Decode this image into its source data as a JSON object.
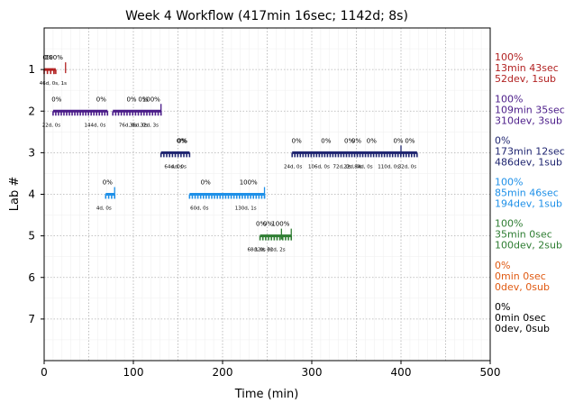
{
  "chart_data": {
    "type": "timeline",
    "title": "Week 4 Workflow (417min 16sec; 1142d; 8s)",
    "xlabel": "Time (min)",
    "ylabel": "Lab #",
    "xlim": [
      0,
      500
    ],
    "ylim": [
      8,
      0
    ],
    "x_ticks": [
      "0",
      "100",
      "200",
      "300",
      "400",
      "500"
    ],
    "y_ticks": [
      "1",
      "2",
      "3",
      "4",
      "5",
      "6",
      "7"
    ],
    "grid": true,
    "labs": [
      {
        "lab": 1,
        "color": "#b22222",
        "summary": [
          "100%",
          "13min 43sec",
          "52dev, 1sub"
        ],
        "segments": [
          [
            0,
            11
          ],
          [
            11,
            13
          ]
        ],
        "spikes": [
          24
        ],
        "upper_labels": [
          {
            "x": 4,
            "text": "0%"
          },
          {
            "x": 11,
            "text": "100%"
          }
        ],
        "lower_labels": [
          {
            "x": 10,
            "text": "46d, 0s, 1s"
          }
        ]
      },
      {
        "lab": 2,
        "color": "#4b1c89",
        "summary": [
          "100%",
          "109min 35sec",
          "310dev, 3sub"
        ],
        "segments": [
          [
            10,
            71
          ],
          [
            77,
            131
          ]
        ],
        "spikes": [
          131
        ],
        "upper_labels": [
          {
            "x": 14,
            "text": "0%"
          },
          {
            "x": 64,
            "text": "0%"
          },
          {
            "x": 98,
            "text": "0%"
          },
          {
            "x": 111,
            "text": "0%"
          },
          {
            "x": 120,
            "text": "100%"
          }
        ],
        "lower_labels": [
          {
            "x": 8,
            "text": "22d, 0s"
          },
          {
            "x": 57,
            "text": "144d, 0s"
          },
          {
            "x": 94,
            "text": "76d, 0s"
          },
          {
            "x": 106,
            "text": "36d, 0s"
          },
          {
            "x": 118,
            "text": "32d, 3s"
          }
        ]
      },
      {
        "lab": 3,
        "color": "#1f2570",
        "summary": [
          "0%",
          "173min 12sec",
          "486dev, 1sub"
        ],
        "segments": [
          [
            131,
            163
          ],
          [
            278,
            418
          ]
        ],
        "spikes": [
          400
        ],
        "upper_labels": [
          {
            "x": 154,
            "text": "0%"
          },
          {
            "x": 155,
            "text": "0%"
          },
          {
            "x": 283,
            "text": "0%"
          },
          {
            "x": 316,
            "text": "0%"
          },
          {
            "x": 342,
            "text": "0%"
          },
          {
            "x": 350,
            "text": "0%"
          },
          {
            "x": 367,
            "text": "0%"
          },
          {
            "x": 397,
            "text": "0%"
          },
          {
            "x": 410,
            "text": "0%"
          }
        ],
        "lower_labels": [
          {
            "x": 145,
            "text": "64d, 0s"
          },
          {
            "x": 151,
            "text": "4d, 0s"
          },
          {
            "x": 279,
            "text": "24d, 0s"
          },
          {
            "x": 308,
            "text": "106d, 0s"
          },
          {
            "x": 334,
            "text": "72d, 0s"
          },
          {
            "x": 346,
            "text": "22d, 0s"
          },
          {
            "x": 358,
            "text": "84d, 0s"
          },
          {
            "x": 386,
            "text": "110d, 0s"
          },
          {
            "x": 407,
            "text": "32d, 0s"
          }
        ]
      },
      {
        "lab": 4,
        "color": "#1e90e8",
        "summary": [
          "100%",
          "85min 46sec",
          "194dev, 1sub"
        ],
        "segments": [
          [
            69,
            79
          ],
          [
            163,
            247
          ]
        ],
        "spikes": [
          79,
          247
        ],
        "upper_labels": [
          {
            "x": 71,
            "text": "0%"
          },
          {
            "x": 181,
            "text": "0%"
          },
          {
            "x": 229,
            "text": "100%"
          }
        ],
        "lower_labels": [
          {
            "x": 67,
            "text": "4d, 0s"
          },
          {
            "x": 174,
            "text": "60d, 0s"
          },
          {
            "x": 226,
            "text": "130d, 1s"
          }
        ]
      },
      {
        "lab": 5,
        "color": "#2e7d32",
        "summary": [
          "100%",
          "35min 0sec",
          "100dev, 2sub"
        ],
        "segments": [
          [
            242,
            277
          ]
        ],
        "spikes": [
          266,
          277
        ],
        "upper_labels": [
          {
            "x": 243,
            "text": "0%"
          },
          {
            "x": 251,
            "text": "0%"
          },
          {
            "x": 265,
            "text": "100%"
          }
        ],
        "lower_labels": [
          {
            "x": 238,
            "text": "68d, 0s"
          },
          {
            "x": 246,
            "text": "32d, 0s"
          },
          {
            "x": 260,
            "text": "32d, 2s"
          }
        ]
      },
      {
        "lab": 6,
        "color": "#e05a12",
        "summary": [
          "0%",
          "0min 0sec",
          "0dev, 0sub"
        ],
        "segments": [],
        "spikes": [],
        "upper_labels": [],
        "lower_labels": []
      },
      {
        "lab": 7,
        "color": "#000000",
        "summary": [
          "0%",
          "0min 0sec",
          "0dev, 0sub"
        ],
        "segments": [],
        "spikes": [],
        "upper_labels": [],
        "lower_labels": []
      }
    ]
  }
}
